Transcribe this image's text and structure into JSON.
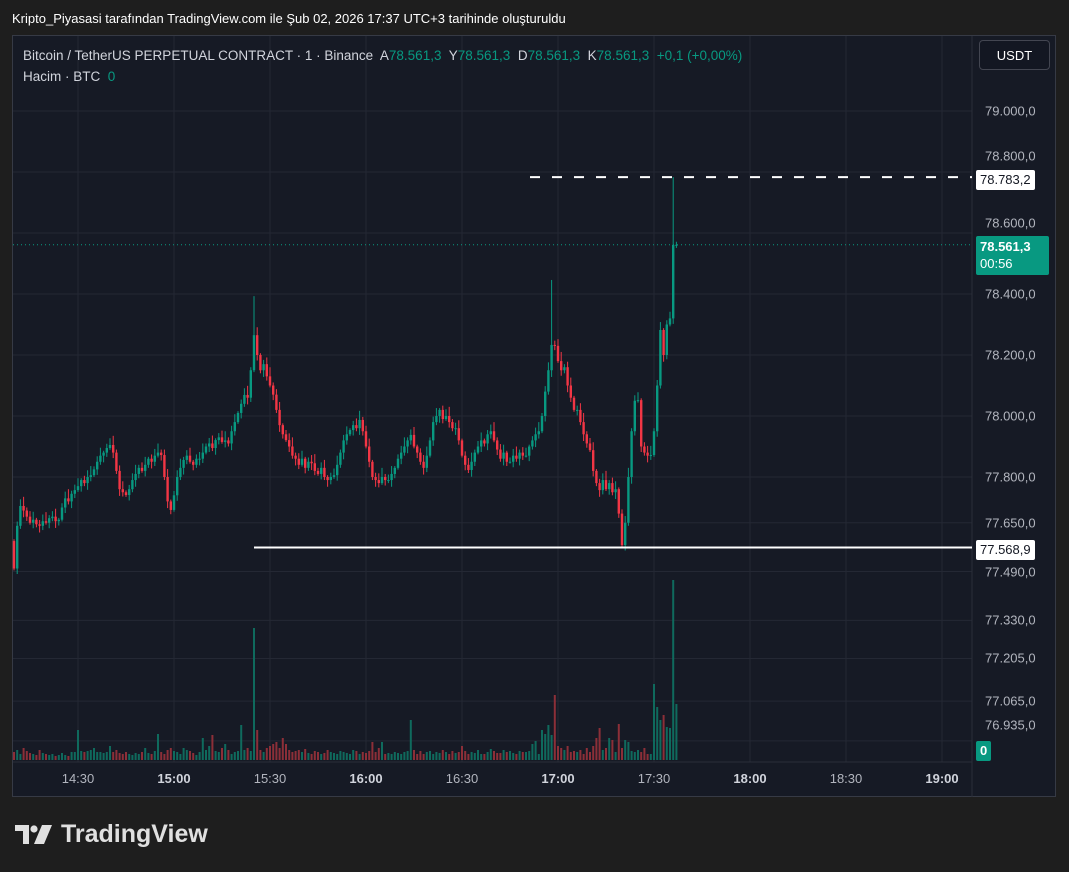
{
  "caption": "Kripto_Piyasasi tarafından TradingView.com ile Şub 02, 2026 17:37 UTC+3 tarihinde oluşturuldu",
  "legend": {
    "symbol": "Bitcoin / TetherUS PERPETUAL CONTRACT · 1 · Binance",
    "open_label": "A",
    "open": "78.561,3",
    "high_label": "Y",
    "high": "78.561,3",
    "low_label": "D",
    "low": "78.561,3",
    "close_label": "K",
    "close": "78.561,3",
    "change": "+0,1 (+0,00%)",
    "volume_label": "Hacim · BTC",
    "volume": "0"
  },
  "currency_button": "USDT",
  "price_axis": [
    "79.000,0",
    "78.800,0",
    "78.600,0",
    "78.400,0",
    "78.200,0",
    "78.000,0",
    "77.800,0",
    "77.650,0",
    "77.490,0",
    "77.330,0",
    "77.205,0",
    "77.065,0",
    "76.935,0"
  ],
  "time_axis": [
    {
      "label": "14:30",
      "bold": false
    },
    {
      "label": "15:00",
      "bold": true
    },
    {
      "label": "15:30",
      "bold": false
    },
    {
      "label": "16:00",
      "bold": true
    },
    {
      "label": "16:30",
      "bold": false
    },
    {
      "label": "17:00",
      "bold": true
    },
    {
      "label": "17:30",
      "bold": false
    },
    {
      "label": "18:00",
      "bold": true
    },
    {
      "label": "18:30",
      "bold": false
    },
    {
      "label": "19:00",
      "bold": true
    }
  ],
  "price_labels": {
    "high_line": "78.783,2",
    "last_price": "78.561,3",
    "countdown": "00:56",
    "low_line": "77.568,9",
    "volume_last": "0"
  },
  "brand": "TradingView",
  "colors": {
    "up": "#089981",
    "down": "#f23645",
    "background": "#161a25",
    "last_price": "#089981"
  },
  "chart_data": {
    "type": "candlestick",
    "interval": "1 minute",
    "first_bar_time": "14:10",
    "last_bar_time": "17:37",
    "ylim": [
      76935,
      79050
    ],
    "grid": true,
    "first_open": 77590,
    "closes": [
      77500,
      77640,
      77705,
      77690,
      77670,
      77650,
      77660,
      77645,
      77640,
      77655,
      77650,
      77665,
      77670,
      77655,
      77660,
      77700,
      77730,
      77720,
      77745,
      77757,
      77770,
      77790,
      77780,
      77800,
      77806,
      77825,
      77850,
      77870,
      77880,
      77895,
      77905,
      77880,
      77820,
      77760,
      77750,
      77741,
      77760,
      77790,
      77810,
      77830,
      77820,
      77840,
      77860,
      77850,
      77870,
      77880,
      77872,
      77800,
      77720,
      77692,
      77740,
      77800,
      77830,
      77856,
      77870,
      77850,
      77840,
      77860,
      77860,
      77880,
      77900,
      77910,
      77895,
      77921,
      77930,
      77915,
      77920,
      77910,
      77950,
      77980,
      78010,
      78040,
      78069,
      78060,
      78150,
      78265,
      78200,
      78150,
      78170,
      78130,
      78100,
      78070,
      78020,
      77970,
      77940,
      77921,
      77900,
      77870,
      77860,
      77840,
      77860,
      77830,
      77850,
      77845,
      77820,
      77810,
      77830,
      77800,
      77790,
      77800,
      77806,
      77840,
      77880,
      77920,
      77940,
      77954,
      77970,
      77960,
      77987,
      77950,
      77900,
      77850,
      77800,
      77790,
      77780,
      77800,
      77790,
      77790,
      77810,
      77830,
      77860,
      77880,
      77900,
      77920,
      77938,
      77900,
      77880,
      77850,
      77830,
      77870,
      77920,
      77980,
      78000,
      78020,
      77990,
      78000,
      77980,
      77960,
      77960,
      77920,
      77870,
      77840,
      77823,
      77850,
      77880,
      77900,
      77920,
      77910,
      77940,
      77950,
      77920,
      77890,
      77860,
      77880,
      77850,
      77850,
      77870,
      77860,
      77880,
      77870,
      77870,
      77900,
      77920,
      77940,
      77950,
      78000,
      78080,
      78150,
      78233,
      78230,
      78180,
      78150,
      78160,
      78100,
      78060,
      78020,
      78020,
      77980,
      77940,
      77910,
      77888,
      77820,
      77780,
      77757,
      77790,
      77760,
      77780,
      77750,
      77760,
      77680,
      77577,
      77650,
      77800,
      77950,
      78050,
      78052,
      77900,
      77880,
      77870,
      77872,
      77950,
      78100,
      78282,
      78200,
      78300,
      78320,
      78561,
      78561.3
    ],
    "extremes": [
      {
        "index": 75,
        "high": 78393
      },
      {
        "index": 168,
        "high": 78446
      },
      {
        "index": 190,
        "low": 77568.9
      },
      {
        "index": 206,
        "high": 78783.2
      }
    ],
    "volume_relative": [
      8,
      10,
      6,
      12,
      9,
      7,
      6,
      5,
      10,
      7,
      6,
      5,
      6,
      4,
      5,
      7,
      5,
      4,
      8,
      8,
      30,
      9,
      8,
      9,
      10,
      12,
      8,
      8,
      7,
      8,
      14,
      8,
      10,
      7,
      6,
      8,
      6,
      5,
      7,
      6,
      8,
      12,
      7,
      6,
      9,
      26,
      8,
      6,
      10,
      12,
      9,
      8,
      6,
      12,
      10,
      9,
      7,
      5,
      8,
      22,
      10,
      14,
      25,
      9,
      8,
      12,
      16,
      10,
      6,
      8,
      9,
      35,
      10,
      12,
      9,
      132,
      30,
      10,
      8,
      12,
      14,
      16,
      18,
      12,
      22,
      16,
      10,
      8,
      9,
      10,
      8,
      11,
      7,
      6,
      9,
      8,
      6,
      7,
      10,
      8,
      7,
      6,
      9,
      8,
      7,
      6,
      10,
      9,
      6,
      8,
      7,
      9,
      18,
      8,
      12,
      18,
      6,
      7,
      6,
      8,
      7,
      6,
      8,
      9,
      40,
      10,
      6,
      9,
      6,
      8,
      9,
      6,
      8,
      7,
      10,
      8,
      6,
      9,
      7,
      8,
      14,
      9,
      6,
      8,
      7,
      10,
      6,
      6,
      8,
      11,
      9,
      7,
      7,
      10,
      8,
      9,
      7,
      6,
      9,
      8,
      8,
      9,
      16,
      19,
      6,
      30,
      26,
      35,
      25,
      65,
      14,
      12,
      10,
      14,
      8,
      9,
      8,
      10,
      6,
      12,
      8,
      14,
      22,
      32,
      10,
      12,
      22,
      20,
      8,
      36,
      12,
      20,
      18,
      9,
      8,
      10,
      8,
      12,
      6,
      6,
      76,
      53,
      40,
      45,
      33,
      32,
      180,
      56
    ],
    "horizontal_lines": [
      {
        "price": 78783.2,
        "style": "dashed"
      },
      {
        "price": 77568.9,
        "style": "solid"
      },
      {
        "price": 78561.3,
        "style": "dotted"
      }
    ]
  }
}
